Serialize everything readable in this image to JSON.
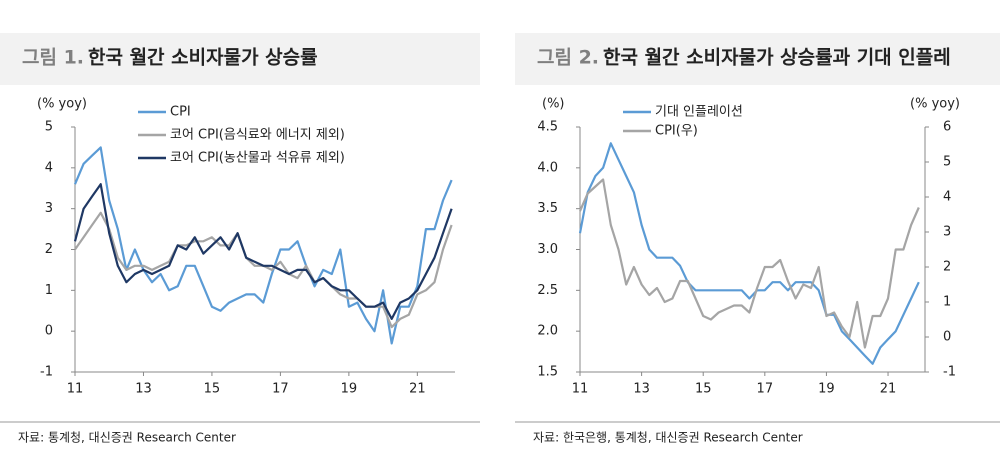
{
  "chart_data": [
    {
      "type": "line",
      "figure_label": "그림 1.",
      "title": "한국 월간 소비자물가 상승률",
      "y_label": "(% yoy)",
      "source": "자료: 통계청, 대신증권 Research Center",
      "x": [
        2011,
        2011.25,
        2011.5,
        2011.75,
        2012,
        2012.25,
        2012.5,
        2012.75,
        2013,
        2013.25,
        2013.5,
        2013.75,
        2014,
        2014.25,
        2014.5,
        2014.75,
        2015,
        2015.25,
        2015.5,
        2015.75,
        2016,
        2016.25,
        2016.5,
        2016.75,
        2017,
        2017.25,
        2017.5,
        2017.75,
        2018,
        2018.25,
        2018.5,
        2018.75,
        2019,
        2019.25,
        2019.5,
        2019.75,
        2020,
        2020.25,
        2020.5,
        2020.75,
        2021,
        2021.25,
        2021.5,
        2021.75,
        2022
      ],
      "xlim": [
        2011,
        2022.1
      ],
      "xticks": [
        {
          "value": 2011,
          "label": "11"
        },
        {
          "value": 2013,
          "label": "13"
        },
        {
          "value": 2015,
          "label": "15"
        },
        {
          "value": 2017,
          "label": "17"
        },
        {
          "value": 2019,
          "label": "19"
        },
        {
          "value": 2021,
          "label": "21"
        }
      ],
      "ylim": [
        -1,
        5
      ],
      "yticks": [
        -1,
        0,
        1,
        2,
        3,
        4,
        5
      ],
      "series": [
        {
          "name": "CPI",
          "color": "#5b9bd5",
          "values": [
            3.6,
            4.1,
            4.3,
            4.5,
            3.2,
            2.5,
            1.5,
            2.0,
            1.5,
            1.2,
            1.4,
            1.0,
            1.1,
            1.6,
            1.6,
            1.1,
            0.6,
            0.5,
            0.7,
            0.8,
            0.9,
            0.9,
            0.7,
            1.4,
            2.0,
            2.0,
            2.2,
            1.6,
            1.1,
            1.5,
            1.4,
            2.0,
            0.6,
            0.7,
            0.3,
            0.0,
            1.0,
            -0.3,
            0.6,
            0.6,
            1.1,
            2.5,
            2.5,
            3.2,
            3.7
          ]
        },
        {
          "name": "코어 CPI(음식료와 에너지 제외)",
          "color": "#a5a5a5",
          "values": [
            2.0,
            2.3,
            2.6,
            2.9,
            2.5,
            1.8,
            1.5,
            1.6,
            1.6,
            1.5,
            1.6,
            1.7,
            2.1,
            2.1,
            2.2,
            2.2,
            2.3,
            2.1,
            2.1,
            2.4,
            1.8,
            1.6,
            1.6,
            1.5,
            1.7,
            1.4,
            1.3,
            1.6,
            1.2,
            1.3,
            1.1,
            0.9,
            0.8,
            0.8,
            0.6,
            0.6,
            0.6,
            0.1,
            0.3,
            0.4,
            0.9,
            1.0,
            1.2,
            2.0,
            2.6
          ]
        },
        {
          "name": "코어 CPI(농산물과 석유류 제외)",
          "color": "#1f3864",
          "values": [
            2.2,
            3.0,
            3.3,
            3.6,
            2.4,
            1.6,
            1.2,
            1.4,
            1.5,
            1.4,
            1.5,
            1.6,
            2.1,
            2.0,
            2.3,
            1.9,
            2.1,
            2.3,
            2.0,
            2.4,
            1.8,
            1.7,
            1.6,
            1.6,
            1.5,
            1.4,
            1.5,
            1.5,
            1.2,
            1.3,
            1.1,
            1.0,
            1.0,
            0.8,
            0.6,
            0.6,
            0.7,
            0.3,
            0.7,
            0.8,
            1.0,
            1.4,
            1.8,
            2.4,
            3.0
          ]
        }
      ]
    },
    {
      "type": "line",
      "figure_label": "그림 2.",
      "title": "한국 월간 소비자물가 상승률과 기대 인플레",
      "y_label": "(%)",
      "y2_label": "(% yoy)",
      "source": "자료: 한국은행, 통계청, 대신증권 Research Center",
      "x": [
        2011,
        2011.25,
        2011.5,
        2011.75,
        2012,
        2012.25,
        2012.5,
        2012.75,
        2013,
        2013.25,
        2013.5,
        2013.75,
        2014,
        2014.25,
        2014.5,
        2014.75,
        2015,
        2015.25,
        2015.5,
        2015.75,
        2016,
        2016.25,
        2016.5,
        2016.75,
        2017,
        2017.25,
        2017.5,
        2017.75,
        2018,
        2018.25,
        2018.5,
        2018.75,
        2019,
        2019.25,
        2019.5,
        2019.75,
        2020,
        2020.25,
        2020.5,
        2020.75,
        2021,
        2021.25,
        2021.5,
        2021.75,
        2022
      ],
      "xlim": [
        2011,
        2022.2
      ],
      "xticks": [
        {
          "value": 2011,
          "label": "11"
        },
        {
          "value": 2013,
          "label": "13"
        },
        {
          "value": 2015,
          "label": "15"
        },
        {
          "value": 2017,
          "label": "17"
        },
        {
          "value": 2019,
          "label": "19"
        },
        {
          "value": 2021,
          "label": "21"
        }
      ],
      "ylim": [
        1.5,
        4.5
      ],
      "yticks": [
        {
          "value": 1.5,
          "label": "1.5"
        },
        {
          "value": 2,
          "label": "2.0"
        },
        {
          "value": 2.5,
          "label": "2.5"
        },
        {
          "value": 3,
          "label": "3.0"
        },
        {
          "value": 3.5,
          "label": "3.5"
        },
        {
          "value": 4,
          "label": "4.0"
        },
        {
          "value": 4.5,
          "label": "4.5"
        }
      ],
      "y2lim": [
        -1,
        6
      ],
      "y2ticks": [
        -1,
        0,
        1,
        2,
        3,
        4,
        5,
        6
      ],
      "series": [
        {
          "name": "기대 인플레이션",
          "color": "#5b9bd5",
          "values": [
            3.2,
            3.7,
            3.9,
            4.0,
            4.3,
            4.1,
            3.9,
            3.7,
            3.3,
            3.0,
            2.9,
            2.9,
            2.9,
            2.8,
            2.6,
            2.5,
            2.5,
            2.5,
            2.5,
            2.5,
            2.5,
            2.5,
            2.4,
            2.5,
            2.5,
            2.6,
            2.6,
            2.5,
            2.6,
            2.6,
            2.6,
            2.5,
            2.2,
            2.2,
            2.0,
            1.9,
            1.8,
            1.7,
            1.6,
            1.8,
            1.9,
            2.0,
            2.2,
            2.4,
            2.6
          ]
        },
        {
          "name": "CPI(우)",
          "color": "#a5a5a5",
          "axis": "y2",
          "values": [
            3.6,
            4.1,
            4.3,
            4.5,
            3.2,
            2.5,
            1.5,
            2.0,
            1.5,
            1.2,
            1.4,
            1.0,
            1.1,
            1.6,
            1.6,
            1.1,
            0.6,
            0.5,
            0.7,
            0.8,
            0.9,
            0.9,
            0.7,
            1.4,
            2.0,
            2.0,
            2.2,
            1.6,
            1.1,
            1.5,
            1.4,
            2.0,
            0.6,
            0.7,
            0.3,
            0.0,
            1.0,
            -0.3,
            0.6,
            0.6,
            1.1,
            2.5,
            2.5,
            3.2,
            3.7
          ]
        }
      ]
    }
  ]
}
